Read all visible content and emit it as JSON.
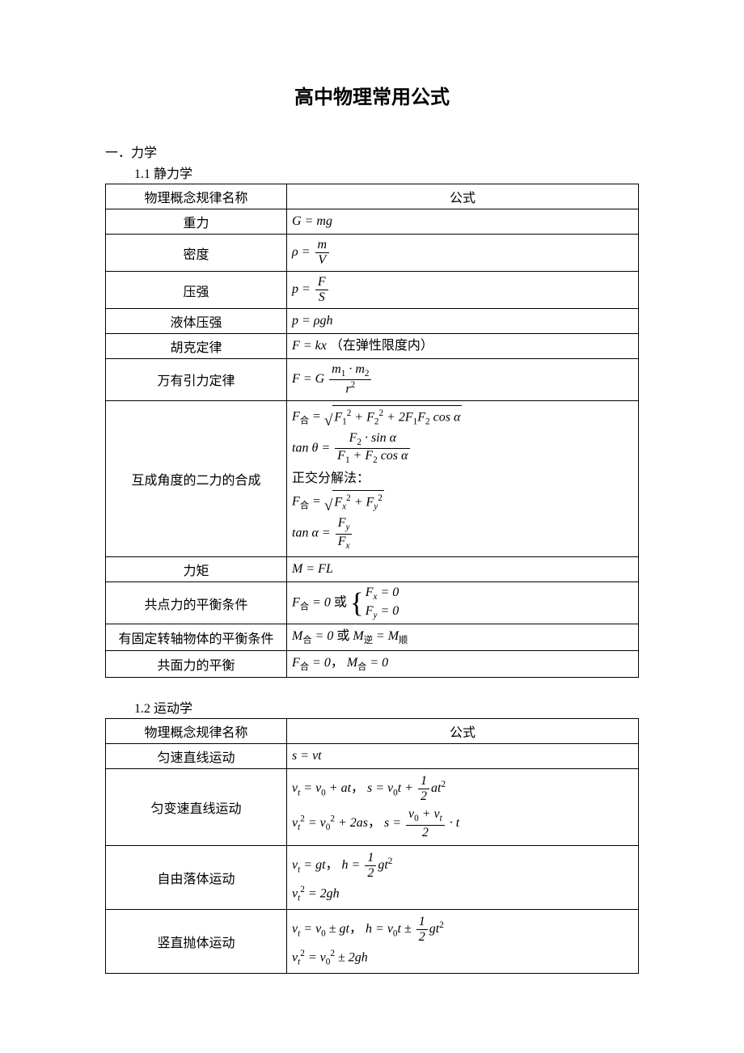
{
  "title": "高中物理常用公式",
  "section1": {
    "heading": "一．力学"
  },
  "subsection11": {
    "heading": "1.1 静力学"
  },
  "table1": {
    "header": {
      "name": "物理概念规律名称",
      "formula": "公式"
    },
    "rows": {
      "gravity": {
        "name": "重力"
      },
      "density": {
        "name": "密度"
      },
      "pressure": {
        "name": "压强"
      },
      "liquid_pressure": {
        "name": "液体压强"
      },
      "hooke": {
        "name": "胡克定律",
        "note": "（在弹性限度内）"
      },
      "gravitation": {
        "name": "万有引力定律"
      },
      "force_comp": {
        "name": "互成角度的二力的合成",
        "ortho_label": "正交分解法："
      },
      "torque": {
        "name": "力矩"
      },
      "concurrent_eq": {
        "name": "共点力的平衡条件",
        "or": "或"
      },
      "fixed_axis_eq": {
        "name": "有固定转轴物体的平衡条件",
        "or": "或"
      },
      "coplanar_eq": {
        "name": "共面力的平衡"
      }
    }
  },
  "subsection12": {
    "heading": "1.2 运动学"
  },
  "table2": {
    "header": {
      "name": "物理概念规律名称",
      "formula": "公式"
    },
    "rows": {
      "uniform": {
        "name": "匀速直线运动"
      },
      "uniform_acc": {
        "name": "匀变速直线运动"
      },
      "free_fall": {
        "name": "自由落体运动"
      },
      "vertical_throw": {
        "name": "竖直抛体运动"
      }
    }
  }
}
